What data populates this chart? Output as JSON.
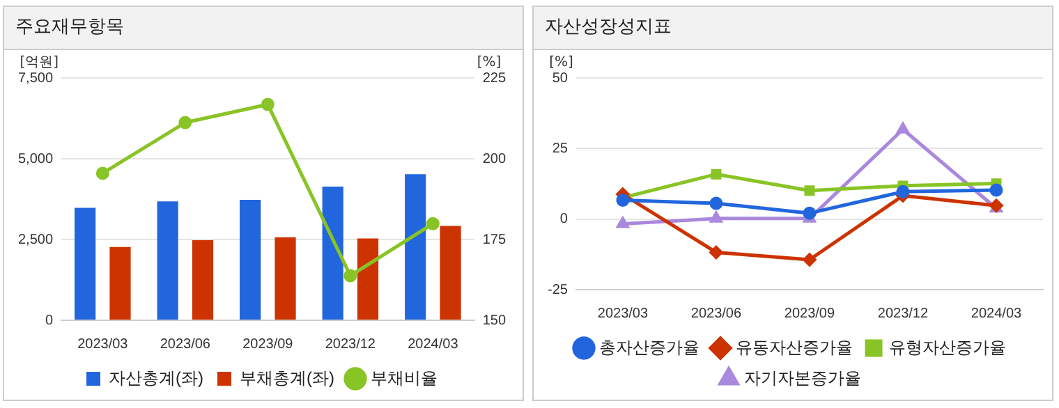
{
  "chart_data": [
    {
      "type": "bar",
      "title": "주요재무항목",
      "ylabel": "[억원]",
      "y2label": "[%]",
      "categories": [
        "2023/03",
        "2023/06",
        "2023/09",
        "2023/12",
        "2024/03"
      ],
      "series": [
        {
          "name": "자산총계(좌)",
          "color": "#2266dd",
          "values": [
            3480,
            3680,
            3730,
            4140,
            4520
          ]
        },
        {
          "name": "부채총계(좌)",
          "color": "#cc3300",
          "values": [
            2270,
            2480,
            2570,
            2530,
            2920
          ]
        },
        {
          "name": "부채비율",
          "type": "line",
          "axis": "y2",
          "color": "#88c425",
          "marker": "circle",
          "values": [
            195.5,
            211.2,
            216.8,
            163.8,
            179.9
          ]
        }
      ],
      "ylim": [
        0,
        7500
      ],
      "yticks": [
        0,
        {
          "value": 2500,
          "label": "2,500"
        },
        {
          "value": 5000,
          "label": "5,000"
        },
        {
          "value": 7500,
          "label": "7,500"
        }
      ],
      "y2lim": [
        150,
        225
      ],
      "y2ticks": [
        150,
        175,
        200,
        225
      ],
      "grid": "y",
      "legend": "bottom"
    },
    {
      "type": "line",
      "title": "자산성장성지표",
      "ylabel": "[%]",
      "categories": [
        "2023/03",
        "2023/06",
        "2023/09",
        "2023/12",
        "2024/03"
      ],
      "series": [
        {
          "name": "총자산증가율",
          "color": "#2266dd",
          "marker": "circle",
          "values": [
            6.7,
            5.6,
            2.1,
            9.7,
            10.3
          ]
        },
        {
          "name": "유동자산증가율",
          "color": "#cc3300",
          "marker": "diamond",
          "values": [
            8.8,
            -11.8,
            -14.4,
            8.3,
            4.8
          ]
        },
        {
          "name": "유형자산증가율",
          "color": "#88c425",
          "marker": "square",
          "values": [
            7.6,
            15.9,
            10.1,
            11.8,
            12.6
          ]
        },
        {
          "name": "자기자본증가율",
          "color": "#aa88dd",
          "marker": "triangle",
          "values": [
            -1.7,
            0.2,
            0.2,
            31.8,
            3.8
          ]
        }
      ],
      "ylim": [
        -25,
        50
      ],
      "yticks": [
        -25,
        0,
        25,
        50
      ],
      "grid": "y",
      "legend": "bottom"
    }
  ]
}
